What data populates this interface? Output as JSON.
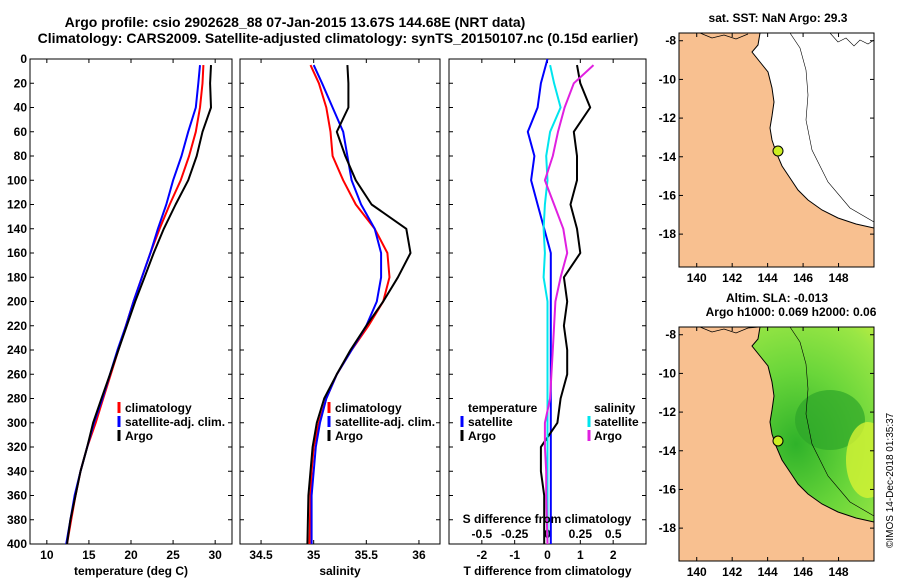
{
  "header": {
    "title_line1": "Argo profile: csio 2902628_88 07-Jan-2015 13.67S 144.68E (NRT data)",
    "title_line2": "Climatology: CARS2009. Satellite-adjusted climatology: synTS_20150107.nc (0.15d earlier)"
  },
  "colors": {
    "climatology": "#ff0000",
    "satellite": "#0000ff",
    "argo": "#000000",
    "salinity_satellite": "#00e5ee",
    "salinity_argo": "#e020e0",
    "land": "#f8c090",
    "sea_green": "#44cc22",
    "argo_marker": "#ccee22"
  },
  "credit": "©IMOS 14-Dec-2018 01:35:37",
  "chart_data": [
    {
      "id": "temperature",
      "type": "line",
      "xlabel": "temperature (deg C)",
      "ylabel": "depth",
      "xlim": [
        8,
        32
      ],
      "ylim": [
        0,
        400
      ],
      "xticks": [
        10,
        15,
        20,
        25,
        30
      ],
      "yticks": [
        0,
        20,
        40,
        60,
        80,
        100,
        120,
        140,
        160,
        180,
        200,
        220,
        240,
        260,
        280,
        300,
        320,
        340,
        360,
        380,
        400
      ],
      "legend": [
        "climatology",
        "satellite-adj. clim.",
        "Argo"
      ],
      "series": [
        {
          "name": "climatology",
          "color": "#ff0000",
          "x": [
            28.6,
            28.5,
            28.2,
            27.7,
            26.9,
            25.9,
            24.6,
            23.4,
            22.3,
            21.3,
            20.3,
            19.4,
            18.5,
            17.6,
            16.7,
            15.8,
            14.8,
            14.0,
            13.4,
            12.9,
            12.4
          ],
          "y": [
            5,
            20,
            40,
            60,
            80,
            100,
            120,
            140,
            160,
            180,
            200,
            220,
            240,
            260,
            280,
            300,
            320,
            340,
            360,
            380,
            400
          ]
        },
        {
          "name": "satellite-adj. clim.",
          "color": "#0000ff",
          "x": [
            28.2,
            28.0,
            27.7,
            26.8,
            26.0,
            25.0,
            24.2,
            23.2,
            22.3,
            21.3,
            20.3,
            19.4,
            18.4,
            17.5,
            16.6,
            15.6,
            14.8,
            14.0,
            13.3,
            12.8,
            12.3
          ],
          "y": [
            5,
            20,
            40,
            60,
            80,
            100,
            120,
            140,
            160,
            180,
            200,
            220,
            240,
            260,
            280,
            300,
            320,
            340,
            360,
            380,
            400
          ]
        },
        {
          "name": "Argo",
          "color": "#000000",
          "x": [
            29.5,
            29.4,
            29.5,
            28.5,
            27.8,
            26.8,
            25.3,
            23.9,
            22.7,
            21.6,
            20.5,
            19.5,
            18.5,
            17.5,
            16.5,
            15.5,
            14.8,
            14.0,
            13.4,
            12.8,
            12.4
          ],
          "y": [
            5,
            20,
            40,
            60,
            80,
            100,
            120,
            140,
            160,
            180,
            200,
            220,
            240,
            260,
            280,
            300,
            320,
            340,
            360,
            380,
            400
          ]
        }
      ]
    },
    {
      "id": "salinity",
      "type": "line",
      "xlabel": "salinity",
      "ylabel": "depth",
      "xlim": [
        34.3,
        36.2
      ],
      "ylim": [
        0,
        400
      ],
      "xticks": [
        34.5,
        35,
        35.5,
        36
      ],
      "xticklabels": [
        "34.5",
        "35",
        "35.5",
        "36"
      ],
      "legend": [
        "climatology",
        "satellite-adj. clim.",
        "Argo"
      ],
      "series": [
        {
          "name": "climatology",
          "color": "#ff0000",
          "x": [
            34.97,
            35.05,
            35.12,
            35.16,
            35.18,
            35.28,
            35.4,
            35.58,
            35.7,
            35.72,
            35.66,
            35.52,
            35.36,
            35.22,
            35.12,
            35.05,
            35.0,
            34.98,
            34.97,
            34.96
          ],
          "y": [
            5,
            20,
            40,
            60,
            80,
            100,
            120,
            140,
            160,
            180,
            200,
            220,
            240,
            260,
            280,
            300,
            320,
            340,
            360,
            400
          ]
        },
        {
          "name": "satellite-adj. clim.",
          "color": "#0000ff",
          "x": [
            35.0,
            35.08,
            35.18,
            35.28,
            35.32,
            35.36,
            35.45,
            35.58,
            35.64,
            35.64,
            35.6,
            35.5,
            35.36,
            35.22,
            35.12,
            35.06,
            35.02,
            35.0,
            34.98,
            34.98
          ],
          "y": [
            5,
            20,
            40,
            60,
            80,
            100,
            120,
            140,
            160,
            180,
            200,
            220,
            240,
            260,
            280,
            300,
            320,
            340,
            360,
            400
          ]
        },
        {
          "name": "Argo",
          "color": "#000000",
          "x": [
            35.32,
            35.33,
            35.33,
            35.22,
            35.3,
            35.4,
            35.55,
            35.88,
            35.92,
            35.8,
            35.66,
            35.5,
            35.35,
            35.22,
            35.1,
            35.03,
            34.99,
            34.97,
            34.95,
            34.94
          ],
          "y": [
            5,
            20,
            40,
            60,
            80,
            100,
            120,
            140,
            160,
            180,
            200,
            220,
            240,
            260,
            280,
            300,
            320,
            340,
            360,
            400
          ]
        }
      ]
    },
    {
      "id": "difference",
      "type": "line",
      "xlabel": "T difference from climatology",
      "ylabel": "depth",
      "xlim": [
        -3,
        3
      ],
      "ylim": [
        0,
        400
      ],
      "xticks": [
        -2,
        -1,
        0,
        1,
        2
      ],
      "secondary_xlabel": "S difference from climatology",
      "secondary_xlim": [
        -0.75,
        0.75
      ],
      "secondary_xticks": [
        -0.5,
        -0.25,
        0,
        0.25,
        0.5
      ],
      "legend_left_title": "temperature",
      "legend_right_title": "salinity",
      "legend": [
        "satellite",
        "Argo"
      ],
      "series": [
        {
          "name": "T satellite",
          "color": "#0000ff",
          "x": [
            0.0,
            -0.2,
            -0.3,
            -0.6,
            -0.4,
            -0.5,
            -0.3,
            -0.1,
            0.1,
            0.1,
            0.1,
            0.1,
            0.1,
            0.1,
            0.1,
            0.1,
            0.1,
            0.1,
            0.1,
            0.1,
            0.1
          ],
          "y": [
            0,
            20,
            40,
            60,
            80,
            100,
            120,
            140,
            160,
            180,
            200,
            220,
            240,
            260,
            280,
            300,
            320,
            340,
            360,
            380,
            400
          ]
        },
        {
          "name": "T Argo",
          "color": "#000000",
          "x": [
            0.9,
            1.0,
            1.3,
            0.8,
            0.9,
            0.9,
            0.7,
            0.9,
            1.0,
            0.5,
            0.6,
            0.5,
            0.6,
            0.6,
            0.4,
            0.3,
            -0.2,
            -0.2,
            -0.1,
            -0.1,
            -0.1
          ],
          "y": [
            5,
            20,
            40,
            60,
            80,
            100,
            120,
            140,
            160,
            180,
            200,
            220,
            240,
            260,
            280,
            300,
            320,
            340,
            360,
            380,
            400
          ]
        },
        {
          "name": "S satellite",
          "color": "#00e5ee",
          "x": [
            0.02,
            0.05,
            0.1,
            0.02,
            -0.01,
            0.0,
            -0.02,
            -0.03,
            -0.02,
            -0.03,
            0.0,
            0.0,
            0.0,
            0.0,
            0.0,
            0.0,
            0.0,
            0.0,
            0.0,
            0.0
          ],
          "y": [
            5,
            20,
            40,
            60,
            80,
            100,
            120,
            140,
            160,
            180,
            200,
            220,
            240,
            260,
            280,
            300,
            320,
            340,
            360,
            400
          ]
        },
        {
          "name": "S Argo",
          "color": "#e020e0",
          "x": [
            0.35,
            0.2,
            0.13,
            0.08,
            0.04,
            -0.02,
            0.05,
            0.12,
            0.15,
            0.1,
            0.06,
            0.05,
            0.04,
            0.03,
            0.02,
            -0.02,
            -0.02,
            -0.01,
            -0.01,
            0.0
          ],
          "y": [
            5,
            20,
            40,
            60,
            80,
            100,
            120,
            140,
            160,
            180,
            200,
            220,
            240,
            260,
            280,
            300,
            320,
            340,
            360,
            400
          ]
        }
      ]
    }
  ],
  "maps": {
    "sst": {
      "title": "sat. SST: NaN Argo: 29.3",
      "xticks": [
        140,
        142,
        144,
        146,
        148
      ],
      "yticks": [
        -8,
        -10,
        -12,
        -14,
        -16,
        -18
      ],
      "xlim": [
        139,
        150
      ],
      "ylim": [
        -19.7,
        -7.6
      ],
      "marker": {
        "lon": 144.68,
        "lat": -13.67
      }
    },
    "sla": {
      "title_line1": "Altim. SLA: -0.013",
      "title_line2": "Argo h1000: 0.069 h2000: 0.06",
      "xticks": [
        140,
        142,
        144,
        146,
        148
      ],
      "yticks": [
        -8,
        -10,
        -12,
        -14,
        -16,
        -18
      ],
      "xlim": [
        139,
        150
      ],
      "ylim": [
        -19.7,
        -7.6
      ],
      "marker": {
        "lon": 144.68,
        "lat": -13.67
      }
    }
  }
}
